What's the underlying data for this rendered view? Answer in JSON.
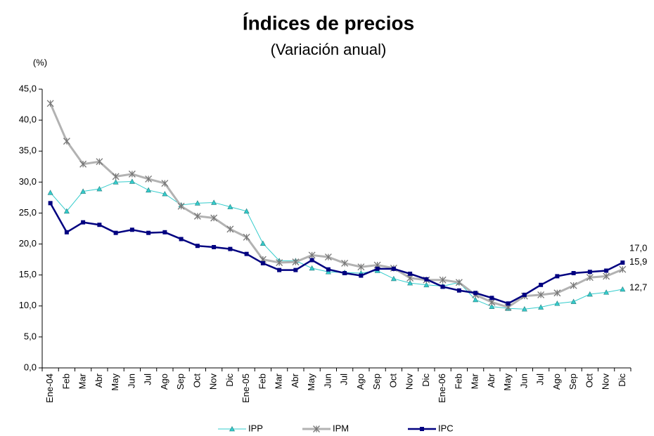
{
  "chart_data": {
    "type": "line",
    "title": "Índices de precios",
    "subtitle": "(Variación anual)",
    "y_label": "(%)",
    "categories": [
      "Ene-04",
      "Feb",
      "Mar",
      "Abr",
      "May",
      "Jun",
      "Jul",
      "Ago",
      "Sep",
      "Oct",
      "Nov",
      "Dic",
      "Ene-05",
      "Feb",
      "Mar",
      "Abr",
      "May",
      "Jun",
      "Jul",
      "Ago",
      "Sep",
      "Oct",
      "Nov",
      "Dic",
      "Ene-06",
      "Feb",
      "Mar",
      "Abr",
      "May",
      "Jun",
      "Jul",
      "Ago",
      "Sep",
      "Oct",
      "Nov",
      "Dic"
    ],
    "ylim": [
      0,
      45
    ],
    "yticks": [
      {
        "value": 0,
        "label": "0,0"
      },
      {
        "value": 5,
        "label": "5,0"
      },
      {
        "value": 10,
        "label": "10,0"
      },
      {
        "value": 15,
        "label": "15,0"
      },
      {
        "value": 20,
        "label": "20,0"
      },
      {
        "value": 25,
        "label": "25,0"
      },
      {
        "value": 30,
        "label": "30,0"
      },
      {
        "value": 35,
        "label": "35,0"
      },
      {
        "value": 40,
        "label": "40,0"
      },
      {
        "value": 45,
        "label": "45,0"
      }
    ],
    "legend": "bottom",
    "series": [
      {
        "name": "IPP",
        "color": "#33cccc",
        "marker": "triangle",
        "values": [
          28.3,
          25.3,
          28.5,
          28.9,
          30.0,
          30.1,
          28.7,
          28.1,
          26.3,
          26.6,
          26.7,
          26.0,
          25.3,
          20.1,
          17.3,
          17.3,
          16.1,
          15.5,
          15.4,
          15.3,
          15.7,
          14.4,
          13.7,
          13.4,
          13.2,
          13.8,
          11.0,
          9.9,
          9.6,
          9.5,
          9.8,
          10.4,
          10.7,
          11.9,
          12.2,
          12.7
        ],
        "value_labels": [
          null,
          null,
          null,
          null,
          null,
          null,
          null,
          null,
          null,
          null,
          null,
          null,
          null,
          null,
          null,
          null,
          null,
          null,
          null,
          null,
          null,
          null,
          null,
          null,
          null,
          null,
          null,
          null,
          null,
          null,
          null,
          null,
          null,
          null,
          null,
          "12,7"
        ]
      },
      {
        "name": "IPM",
        "color": "#b2b2b2",
        "marker": "star",
        "values": [
          42.7,
          36.6,
          32.9,
          33.3,
          30.9,
          31.3,
          30.5,
          29.8,
          26.1,
          24.5,
          24.2,
          22.4,
          21.1,
          17.5,
          17.0,
          17.1,
          18.2,
          17.9,
          16.9,
          16.3,
          16.6,
          16.1,
          14.5,
          14.2,
          14.2,
          13.8,
          11.8,
          10.6,
          9.8,
          11.6,
          11.8,
          12.1,
          13.3,
          14.6,
          14.8,
          15.9
        ],
        "value_labels": [
          null,
          null,
          null,
          null,
          null,
          null,
          null,
          null,
          null,
          null,
          null,
          null,
          null,
          null,
          null,
          null,
          null,
          null,
          null,
          null,
          null,
          null,
          null,
          null,
          null,
          null,
          null,
          null,
          null,
          null,
          null,
          null,
          null,
          null,
          null,
          "15,9"
        ]
      },
      {
        "name": "IPC",
        "color": "#000080",
        "marker": "square",
        "values": [
          26.6,
          21.9,
          23.5,
          23.1,
          21.8,
          22.3,
          21.8,
          21.9,
          20.8,
          19.7,
          19.5,
          19.2,
          18.4,
          16.9,
          15.8,
          15.8,
          17.4,
          15.9,
          15.3,
          14.9,
          16.0,
          16.0,
          15.2,
          14.3,
          13.1,
          12.5,
          12.1,
          11.3,
          10.4,
          11.8,
          13.4,
          14.8,
          15.3,
          15.5,
          15.7,
          17.0
        ],
        "value_labels": [
          null,
          null,
          null,
          null,
          null,
          null,
          null,
          null,
          null,
          null,
          null,
          null,
          null,
          null,
          null,
          null,
          null,
          null,
          null,
          null,
          null,
          null,
          null,
          null,
          null,
          null,
          null,
          null,
          null,
          null,
          null,
          null,
          null,
          null,
          null,
          "17,0"
        ]
      }
    ]
  }
}
